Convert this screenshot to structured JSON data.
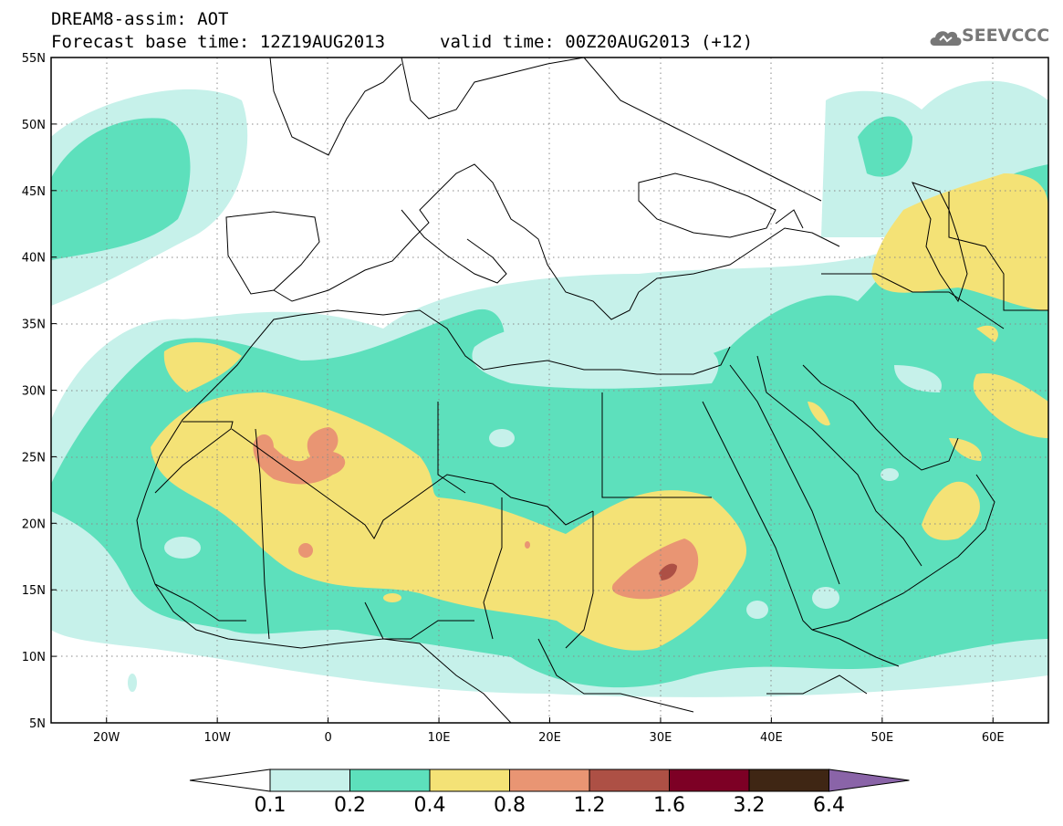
{
  "header": {
    "title_line1": "DREAM8-assim: AOT",
    "base_time": "Forecast base time: 12Z19AUG2013",
    "valid_time": "valid time: 00Z20AUG2013 (+12)"
  },
  "logo": {
    "text": "SEEVCCC",
    "icon": "cloud-logo-icon"
  },
  "map": {
    "lon_range": [
      -25,
      65
    ],
    "lat_range": [
      5,
      55
    ],
    "grid": true,
    "lon_ticks": [
      "20W",
      "10W",
      "0",
      "10E",
      "20E",
      "30E",
      "40E",
      "50E",
      "60E"
    ],
    "lat_ticks": [
      "55N",
      "50N",
      "45N",
      "40N",
      "35N",
      "30N",
      "25N",
      "20N",
      "15N",
      "10N",
      "5N"
    ]
  },
  "colorbar": {
    "levels": [
      "0.1",
      "0.2",
      "0.4",
      "0.8",
      "1.2",
      "1.6",
      "3.2",
      "6.4"
    ],
    "colors": [
      "#c6f1ea",
      "#5de0bc",
      "#f4e276",
      "#e99573",
      "#ad5045",
      "#7d0025",
      "#3f2614",
      "#8a64a8"
    ],
    "under_color": "#ffffff",
    "over_color": "#8a64a8"
  }
}
